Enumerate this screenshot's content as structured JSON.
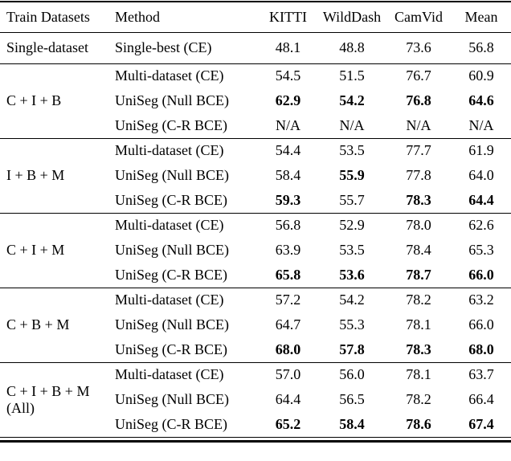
{
  "table": {
    "columns": [
      "Train Datasets",
      "Method",
      "KITTI",
      "WildDash",
      "CamVid",
      "Mean"
    ],
    "groups": [
      {
        "train": "Single-dataset",
        "train2": "",
        "rows": [
          {
            "method": "Single-best (CE)",
            "v": [
              "48.1",
              "48.8",
              "73.6",
              "56.8"
            ],
            "b": [
              false,
              false,
              false,
              false
            ]
          }
        ]
      },
      {
        "train": "C + I + B",
        "train2": "",
        "rows": [
          {
            "method": "Multi-dataset (CE)",
            "v": [
              "54.5",
              "51.5",
              "76.7",
              "60.9"
            ],
            "b": [
              false,
              false,
              false,
              false
            ]
          },
          {
            "method": "UniSeg (Null BCE)",
            "v": [
              "62.9",
              "54.2",
              "76.8",
              "64.6"
            ],
            "b": [
              true,
              true,
              true,
              true
            ]
          },
          {
            "method": "UniSeg (C-R BCE)",
            "v": [
              "N/A",
              "N/A",
              "N/A",
              "N/A"
            ],
            "b": [
              false,
              false,
              false,
              false
            ]
          }
        ]
      },
      {
        "train": "I + B + M",
        "train2": "",
        "rows": [
          {
            "method": "Multi-dataset (CE)",
            "v": [
              "54.4",
              "53.5",
              "77.7",
              "61.9"
            ],
            "b": [
              false,
              false,
              false,
              false
            ]
          },
          {
            "method": "UniSeg (Null BCE)",
            "v": [
              "58.4",
              "55.9",
              "77.8",
              "64.0"
            ],
            "b": [
              false,
              true,
              false,
              false
            ]
          },
          {
            "method": "UniSeg (C-R BCE)",
            "v": [
              "59.3",
              "55.7",
              "78.3",
              "64.4"
            ],
            "b": [
              true,
              false,
              true,
              true
            ]
          }
        ]
      },
      {
        "train": "C + I + M",
        "train2": "",
        "rows": [
          {
            "method": "Multi-dataset (CE)",
            "v": [
              "56.8",
              "52.9",
              "78.0",
              "62.6"
            ],
            "b": [
              false,
              false,
              false,
              false
            ]
          },
          {
            "method": "UniSeg (Null BCE)",
            "v": [
              "63.9",
              "53.5",
              "78.4",
              "65.3"
            ],
            "b": [
              false,
              false,
              false,
              false
            ]
          },
          {
            "method": "UniSeg (C-R BCE)",
            "v": [
              "65.8",
              "53.6",
              "78.7",
              "66.0"
            ],
            "b": [
              true,
              true,
              true,
              true
            ]
          }
        ]
      },
      {
        "train": "C + B + M",
        "train2": "",
        "rows": [
          {
            "method": "Multi-dataset (CE)",
            "v": [
              "57.2",
              "54.2",
              "78.2",
              "63.2"
            ],
            "b": [
              false,
              false,
              false,
              false
            ]
          },
          {
            "method": "UniSeg (Null BCE)",
            "v": [
              "64.7",
              "55.3",
              "78.1",
              "66.0"
            ],
            "b": [
              false,
              false,
              false,
              false
            ]
          },
          {
            "method": "UniSeg (C-R BCE)",
            "v": [
              "68.0",
              "57.8",
              "78.3",
              "68.0"
            ],
            "b": [
              true,
              true,
              true,
              true
            ]
          }
        ]
      },
      {
        "train": "C + I + B + M",
        "train2": "(All)",
        "rows": [
          {
            "method": "Multi-dataset (CE)",
            "v": [
              "57.0",
              "56.0",
              "78.1",
              "63.7"
            ],
            "b": [
              false,
              false,
              false,
              false
            ]
          },
          {
            "method": "UniSeg (Null BCE)",
            "v": [
              "64.4",
              "56.5",
              "78.2",
              "66.4"
            ],
            "b": [
              false,
              false,
              false,
              false
            ]
          },
          {
            "method": "UniSeg (C-R BCE)",
            "v": [
              "65.2",
              "58.4",
              "78.6",
              "67.4"
            ],
            "b": [
              true,
              true,
              true,
              true
            ]
          }
        ]
      }
    ]
  }
}
